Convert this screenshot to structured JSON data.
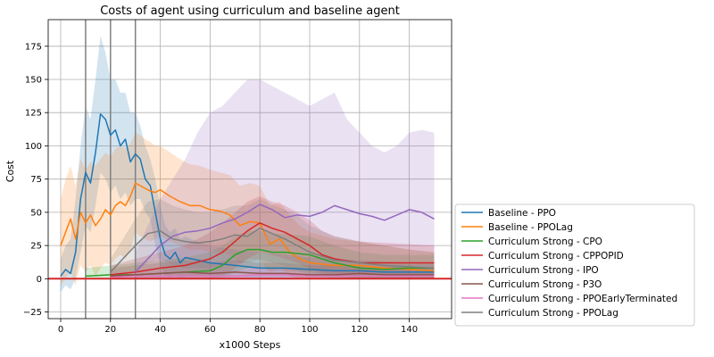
{
  "chart_data": {
    "type": "line",
    "title": "Costs of agent using curriculum and baseline agent",
    "xlabel": "x1000 Steps",
    "ylabel": "Cost",
    "xlim": [
      -5,
      157
    ],
    "ylim": [
      -30,
      195
    ],
    "xticks": [
      0,
      20,
      40,
      60,
      80,
      100,
      120,
      140
    ],
    "yticks": [
      -25,
      0,
      25,
      50,
      75,
      100,
      125,
      150,
      175
    ],
    "grid": true,
    "legend_position": "outside-right-bottom",
    "reference_lines": {
      "horizontal": {
        "y": 0,
        "color": "#d62728"
      },
      "vertical": {
        "x": [
          10,
          20,
          30
        ],
        "color": "#808080"
      }
    },
    "series": [
      {
        "name": "Baseline - PPO",
        "color": "#1f77b4",
        "x": [
          0,
          2,
          4,
          6,
          8,
          10,
          12,
          14,
          16,
          18,
          20,
          22,
          24,
          26,
          28,
          30,
          32,
          34,
          36,
          38,
          40,
          42,
          44,
          46,
          48,
          50,
          55,
          60,
          70,
          80,
          90,
          100,
          110,
          120,
          130,
          140,
          150
        ],
        "y": [
          2,
          7,
          4,
          20,
          60,
          80,
          72,
          95,
          124,
          120,
          108,
          112,
          100,
          105,
          88,
          94,
          90,
          75,
          70,
          50,
          30,
          18,
          15,
          20,
          12,
          16,
          14,
          12,
          10,
          8,
          8,
          7,
          6,
          6,
          5,
          5,
          5
        ],
        "band_upper": [
          15,
          25,
          30,
          60,
          100,
          130,
          120,
          150,
          183,
          170,
          150,
          150,
          140,
          140,
          125,
          125,
          115,
          100,
          90,
          75,
          55,
          40,
          35,
          38,
          30,
          32,
          28,
          25,
          22,
          20,
          18,
          16,
          15,
          14,
          13,
          12,
          12
        ],
        "band_lower": [
          -10,
          -5,
          -8,
          0,
          20,
          40,
          35,
          55,
          80,
          75,
          65,
          70,
          60,
          65,
          55,
          60,
          60,
          50,
          45,
          25,
          10,
          2,
          0,
          4,
          0,
          2,
          2,
          1,
          0,
          0,
          0,
          0,
          0,
          0,
          0,
          0,
          0
        ]
      },
      {
        "name": "Baseline - PPOLag",
        "color": "#ff7f0e",
        "x": [
          0,
          2,
          4,
          6,
          8,
          10,
          12,
          14,
          16,
          18,
          20,
          22,
          24,
          26,
          28,
          30,
          32,
          34,
          36,
          38,
          40,
          44,
          48,
          52,
          56,
          60,
          64,
          68,
          72,
          76,
          80,
          84,
          88,
          92,
          96,
          100,
          110,
          120,
          130,
          140,
          150
        ],
        "y": [
          25,
          35,
          45,
          30,
          50,
          42,
          48,
          40,
          45,
          52,
          48,
          55,
          58,
          55,
          62,
          72,
          70,
          68,
          66,
          65,
          67,
          62,
          58,
          55,
          55,
          52,
          51,
          48,
          40,
          43,
          42,
          26,
          30,
          20,
          15,
          12,
          10,
          10,
          8,
          7,
          6
        ],
        "band_upper": [
          60,
          75,
          85,
          70,
          90,
          82,
          88,
          85,
          90,
          95,
          92,
          98,
          100,
          98,
          102,
          110,
          108,
          105,
          103,
          100,
          100,
          95,
          90,
          86,
          85,
          82,
          80,
          78,
          70,
          72,
          70,
          55,
          58,
          48,
          40,
          35,
          30,
          28,
          25,
          22,
          20
        ],
        "band_lower": [
          -5,
          0,
          5,
          -5,
          10,
          5,
          10,
          2,
          8,
          12,
          10,
          15,
          18,
          15,
          22,
          35,
          32,
          30,
          28,
          30,
          32,
          28,
          25,
          22,
          22,
          20,
          20,
          18,
          12,
          15,
          14,
          5,
          8,
          2,
          0,
          0,
          0,
          0,
          0,
          0,
          0
        ]
      },
      {
        "name": "Curriculum Strong - CPO",
        "color": "#2ca02c",
        "x": [
          10,
          20,
          30,
          40,
          50,
          60,
          65,
          70,
          75,
          80,
          85,
          90,
          100,
          110,
          120,
          130,
          140,
          150
        ],
        "y": [
          2,
          3,
          3,
          4,
          5,
          6,
          10,
          18,
          22,
          22,
          20,
          20,
          18,
          12,
          8,
          7,
          8,
          8
        ],
        "band_upper": [
          8,
          10,
          12,
          14,
          16,
          20,
          25,
          32,
          36,
          36,
          34,
          34,
          32,
          25,
          20,
          18,
          18,
          18
        ],
        "band_lower": [
          0,
          0,
          0,
          0,
          0,
          0,
          0,
          5,
          8,
          8,
          6,
          6,
          5,
          2,
          0,
          0,
          0,
          0
        ]
      },
      {
        "name": "Curriculum Strong - CPPOPID",
        "color": "#d62728",
        "x": [
          20,
          30,
          40,
          50,
          60,
          65,
          70,
          75,
          80,
          85,
          90,
          95,
          100,
          105,
          110,
          120,
          130,
          140,
          150
        ],
        "y": [
          3,
          5,
          8,
          10,
          15,
          20,
          28,
          36,
          42,
          38,
          35,
          30,
          25,
          18,
          15,
          12,
          12,
          12,
          12
        ],
        "band_upper": [
          10,
          15,
          20,
          25,
          35,
          42,
          50,
          58,
          62,
          58,
          55,
          50,
          44,
          36,
          32,
          28,
          27,
          26,
          25
        ],
        "band_lower": [
          0,
          0,
          0,
          0,
          0,
          2,
          8,
          15,
          20,
          18,
          15,
          12,
          8,
          4,
          2,
          0,
          0,
          0,
          0
        ]
      },
      {
        "name": "Curriculum Strong - IPO",
        "color": "#9467bd",
        "x": [
          30,
          35,
          40,
          45,
          50,
          55,
          60,
          65,
          70,
          75,
          80,
          85,
          90,
          95,
          100,
          105,
          110,
          115,
          120,
          125,
          130,
          135,
          140,
          145,
          150
        ],
        "y": [
          5,
          15,
          25,
          32,
          35,
          36,
          38,
          42,
          45,
          50,
          56,
          52,
          46,
          48,
          47,
          50,
          55,
          52,
          49,
          47,
          44,
          48,
          52,
          50,
          45
        ],
        "band_upper": [
          20,
          40,
          60,
          75,
          90,
          110,
          125,
          130,
          140,
          150,
          150,
          145,
          140,
          135,
          130,
          135,
          140,
          120,
          110,
          100,
          95,
          100,
          110,
          112,
          110
        ],
        "band_lower": [
          0,
          0,
          0,
          0,
          0,
          0,
          0,
          0,
          0,
          0,
          0,
          0,
          0,
          0,
          0,
          0,
          0,
          0,
          0,
          0,
          0,
          0,
          0,
          0,
          0
        ]
      },
      {
        "name": "Curriculum Strong - P3O",
        "color": "#8c564b",
        "x": [
          20,
          30,
          40,
          50,
          60,
          70,
          80,
          90,
          100,
          110,
          120,
          130,
          140,
          150
        ],
        "y": [
          2,
          3,
          4,
          5,
          4,
          5,
          4,
          4,
          3,
          3,
          4,
          3,
          3,
          3
        ],
        "band_upper": [
          8,
          10,
          12,
          14,
          12,
          14,
          12,
          12,
          10,
          10,
          10,
          9,
          9,
          9
        ],
        "band_lower": [
          0,
          0,
          0,
          0,
          0,
          0,
          0,
          0,
          0,
          0,
          0,
          0,
          0,
          0
        ]
      },
      {
        "name": "Curriculum Strong - PPOEarlyTerminated",
        "color": "#e377c2",
        "x": [
          20,
          30,
          40,
          50,
          60,
          70,
          80,
          90,
          100,
          110,
          120,
          130,
          140,
          150
        ],
        "y": [
          1,
          2,
          2,
          2,
          2,
          2,
          3,
          3,
          2,
          2,
          2,
          2,
          2,
          2
        ],
        "band_upper": [
          5,
          6,
          6,
          6,
          6,
          6,
          8,
          8,
          6,
          6,
          6,
          6,
          6,
          6
        ],
        "band_lower": [
          0,
          0,
          0,
          0,
          0,
          0,
          0,
          0,
          0,
          0,
          0,
          0,
          0,
          0
        ]
      },
      {
        "name": "Curriculum Strong - PPOLag",
        "color": "#7f7f7f",
        "x": [
          20,
          25,
          30,
          35,
          40,
          45,
          50,
          55,
          60,
          65,
          70,
          75,
          80,
          85,
          90,
          95,
          100,
          110,
          120,
          130,
          140,
          150
        ],
        "y": [
          5,
          15,
          25,
          34,
          36,
          30,
          28,
          27,
          28,
          30,
          33,
          32,
          38,
          34,
          30,
          25,
          20,
          14,
          12,
          10,
          9,
          8
        ],
        "band_upper": [
          15,
          30,
          45,
          58,
          60,
          55,
          52,
          50,
          50,
          52,
          55,
          55,
          60,
          56,
          52,
          48,
          40,
          32,
          28,
          25,
          22,
          20
        ],
        "band_lower": [
          0,
          0,
          5,
          12,
          15,
          10,
          8,
          8,
          8,
          10,
          12,
          12,
          15,
          12,
          10,
          6,
          3,
          0,
          0,
          0,
          0,
          0
        ]
      }
    ]
  }
}
